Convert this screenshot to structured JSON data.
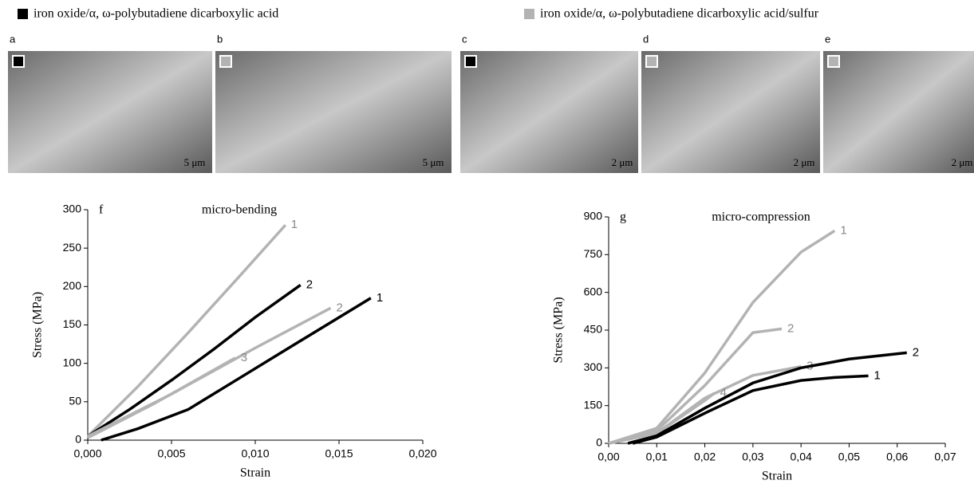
{
  "legend": [
    {
      "label": "iron oxide/α, ω-polybutadiene dicarboxylic acid",
      "color": "#000000"
    },
    {
      "label": "iron oxide/α, ω-polybutadiene dicarboxylic acid/sulfur",
      "color": "#b3b3b3"
    }
  ],
  "images": [
    {
      "label": "a",
      "scale_bar": "5 μm"
    },
    {
      "label": "b",
      "scale_bar": "5 μm"
    },
    {
      "label": "c",
      "scale_bar": "2 μm"
    },
    {
      "label": "d",
      "scale_bar": "2 μm"
    },
    {
      "label": "e",
      "scale_bar": "2 μm"
    }
  ],
  "chart_data": [
    {
      "type": "line",
      "panel": "f",
      "title": "micro-bending",
      "x_label": "Strain",
      "y_label": "Stress (MPa)",
      "xlim": [
        0,
        0.02
      ],
      "ylim": [
        0,
        300
      ],
      "xticks": [
        {
          "value": 0,
          "label": "0,000"
        },
        {
          "value": 0.005,
          "label": "0,005"
        },
        {
          "value": 0.01,
          "label": "0,010"
        },
        {
          "value": 0.015,
          "label": "0,015"
        },
        {
          "value": 0.02,
          "label": "0,020"
        }
      ],
      "yticks": [
        0,
        50,
        100,
        150,
        200,
        250,
        300
      ],
      "series": [
        {
          "name": "1",
          "color": "#b3b3b3",
          "x": [
            0,
            0.003,
            0.006,
            0.009,
            0.0118
          ],
          "values": [
            5,
            70,
            140,
            212,
            280
          ]
        },
        {
          "name": "2",
          "color": "#000000",
          "x": [
            0,
            0.0025,
            0.005,
            0.0075,
            0.01,
            0.0127
          ],
          "values": [
            5,
            40,
            78,
            118,
            160,
            202
          ]
        },
        {
          "name": "2",
          "color": "#b3b3b3",
          "x": [
            0,
            0.005,
            0.01,
            0.0145
          ],
          "values": [
            5,
            60,
            120,
            172
          ]
        },
        {
          "name": "1",
          "color": "#000000",
          "x": [
            0.0008,
            0.003,
            0.006,
            0.009,
            0.012,
            0.0169
          ],
          "values": [
            0,
            15,
            40,
            80,
            120,
            185
          ]
        },
        {
          "name": "3",
          "color": "#b3b3b3",
          "x": [
            0,
            0.004,
            0.0088
          ],
          "values": [
            3,
            48,
            107
          ]
        }
      ]
    },
    {
      "type": "line",
      "panel": "g",
      "title": "micro-compression",
      "x_label": "Strain",
      "y_label": "Stress (MPa)",
      "xlim": [
        0,
        0.07
      ],
      "ylim": [
        0,
        900
      ],
      "xticks": [
        {
          "value": 0,
          "label": "0,00"
        },
        {
          "value": 0.01,
          "label": "0,01"
        },
        {
          "value": 0.02,
          "label": "0,02"
        },
        {
          "value": 0.03,
          "label": "0,03"
        },
        {
          "value": 0.04,
          "label": "0,04"
        },
        {
          "value": 0.05,
          "label": "0,05"
        },
        {
          "value": 0.06,
          "label": "0,06"
        },
        {
          "value": 0.07,
          "label": "0,07"
        }
      ],
      "yticks": [
        0,
        150,
        300,
        450,
        600,
        750,
        900
      ],
      "series": [
        {
          "name": "1",
          "color": "#b3b3b3",
          "x": [
            0,
            0.01,
            0.02,
            0.03,
            0.04,
            0.047
          ],
          "values": [
            0,
            60,
            280,
            560,
            760,
            845
          ]
        },
        {
          "name": "2",
          "color": "#b3b3b3",
          "x": [
            0,
            0.01,
            0.02,
            0.03,
            0.036
          ],
          "values": [
            0,
            50,
            230,
            440,
            455
          ]
        },
        {
          "name": "3",
          "color": "#b3b3b3",
          "x": [
            0,
            0.01,
            0.02,
            0.03,
            0.04
          ],
          "values": [
            0,
            40,
            180,
            270,
            305
          ]
        },
        {
          "name": "4",
          "color": "#b3b3b3",
          "x": [
            0,
            0.01,
            0.02,
            0.022
          ],
          "values": [
            0,
            40,
            170,
            200
          ]
        },
        {
          "name": "2",
          "color": "#000000",
          "x": [
            0.004,
            0.01,
            0.02,
            0.03,
            0.04,
            0.05,
            0.062
          ],
          "values": [
            0,
            30,
            140,
            240,
            300,
            335,
            360
          ]
        },
        {
          "name": "1",
          "color": "#000000",
          "x": [
            0.005,
            0.01,
            0.02,
            0.03,
            0.04,
            0.047,
            0.054
          ],
          "values": [
            0,
            25,
            120,
            210,
            250,
            262,
            268
          ]
        }
      ]
    }
  ]
}
